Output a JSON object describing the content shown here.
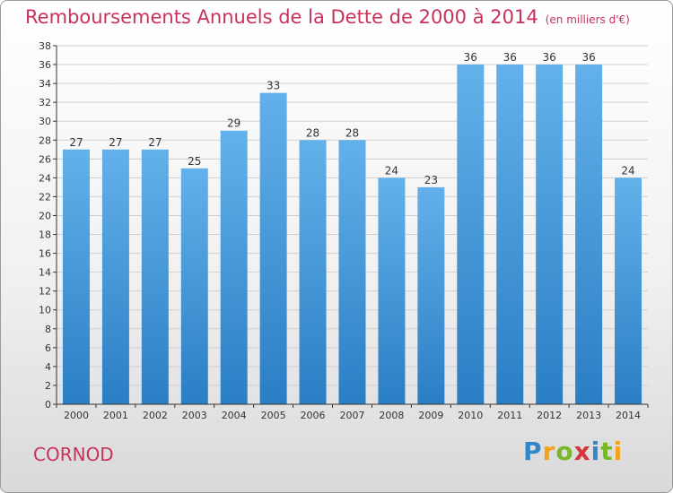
{
  "header": {
    "title": "Remboursements Annuels de la Dette de 2000 à 2014",
    "subtitle": "(en milliers d'€)"
  },
  "footer": {
    "city": "CORNOD",
    "brand_letters": [
      "P",
      "r",
      "o",
      "x",
      "i",
      "t",
      "i"
    ]
  },
  "colors": {
    "bar_top": "#63b1ea",
    "bar_bottom": "#2a7ec4",
    "title": "#c8325a",
    "grid": "#cfcfcf",
    "axis": "#333333"
  },
  "chart_data": {
    "type": "bar",
    "title": "Remboursements Annuels de la Dette de 2000 à 2014",
    "subtitle": "(en milliers d'€)",
    "xlabel": "",
    "ylabel": "",
    "categories": [
      "2000",
      "2001",
      "2002",
      "2003",
      "2004",
      "2005",
      "2006",
      "2007",
      "2008",
      "2009",
      "2010",
      "2011",
      "2012",
      "2013",
      "2014"
    ],
    "values": [
      27,
      27,
      27,
      25,
      29,
      33,
      28,
      28,
      24,
      23,
      36,
      36,
      36,
      36,
      24
    ],
    "ylim": [
      0,
      38
    ],
    "ytick_step": 2,
    "grid": true,
    "legend": "none"
  }
}
